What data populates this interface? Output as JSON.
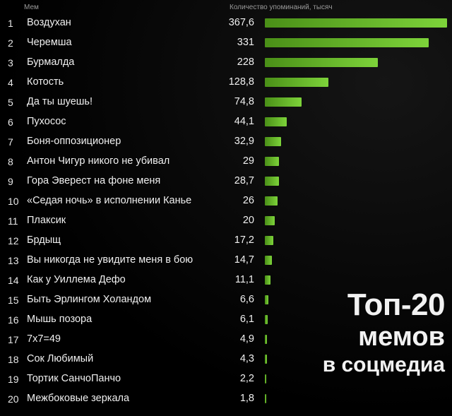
{
  "chart_data": {
    "type": "bar",
    "orientation": "horizontal",
    "column_headers": {
      "meme": "Мем",
      "count": "Количество упоминаний, тысяч"
    },
    "title_lines": [
      "Топ-20",
      "мемов",
      "в соцмедиа"
    ],
    "rows": [
      {
        "rank": "1",
        "name": "Воздухан",
        "value": 367.6,
        "label": "367,6"
      },
      {
        "rank": "2",
        "name": "Черемша",
        "value": 331,
        "label": "331"
      },
      {
        "rank": "3",
        "name": "Бурмалда",
        "value": 228,
        "label": "228"
      },
      {
        "rank": "4",
        "name": "Котость",
        "value": 128.8,
        "label": "128,8"
      },
      {
        "rank": "5",
        "name": "Да ты шуешь!",
        "value": 74.8,
        "label": "74,8"
      },
      {
        "rank": "6",
        "name": "Пухосос",
        "value": 44.1,
        "label": "44,1"
      },
      {
        "rank": "7",
        "name": "Боня-оппозиционер",
        "value": 32.9,
        "label": "32,9"
      },
      {
        "rank": "8",
        "name": "Антон Чигур никого не убивал",
        "value": 29,
        "label": "29"
      },
      {
        "rank": "9",
        "name": "Гора Эверест на фоне меня",
        "value": 28.7,
        "label": "28,7"
      },
      {
        "rank": "10",
        "name": "«Седая ночь» в исполнении Канье",
        "value": 26,
        "label": "26"
      },
      {
        "rank": "11",
        "name": "Плаксик",
        "value": 20,
        "label": "20"
      },
      {
        "rank": "12",
        "name": "Брдыщ",
        "value": 17.2,
        "label": "17,2"
      },
      {
        "rank": "13",
        "name": "Вы никогда не увидите меня в бою",
        "value": 14.7,
        "label": "14,7"
      },
      {
        "rank": "14",
        "name": "Как у Уиллема Дефо",
        "value": 11.1,
        "label": "11,1"
      },
      {
        "rank": "15",
        "name": "Быть Эрлингом Холандом",
        "value": 6.6,
        "label": "6,6"
      },
      {
        "rank": "16",
        "name": "Мышь позора",
        "value": 6.1,
        "label": "6,1"
      },
      {
        "rank": "17",
        "name": "7x7=49",
        "value": 4.9,
        "label": "4,9"
      },
      {
        "rank": "18",
        "name": "Сок Любимый",
        "value": 4.3,
        "label": "4,3"
      },
      {
        "rank": "19",
        "name": "Тортик СанчоПанчо",
        "value": 2.2,
        "label": "2,2"
      },
      {
        "rank": "20",
        "name": "Межбоковые зеркала",
        "value": 1.8,
        "label": "1,8"
      }
    ],
    "xlim": [
      0,
      367.6
    ],
    "grid": false,
    "colors": {
      "bar_start": "#4a8f17",
      "bar_end": "#7dd33a",
      "background": "#000000"
    }
  }
}
